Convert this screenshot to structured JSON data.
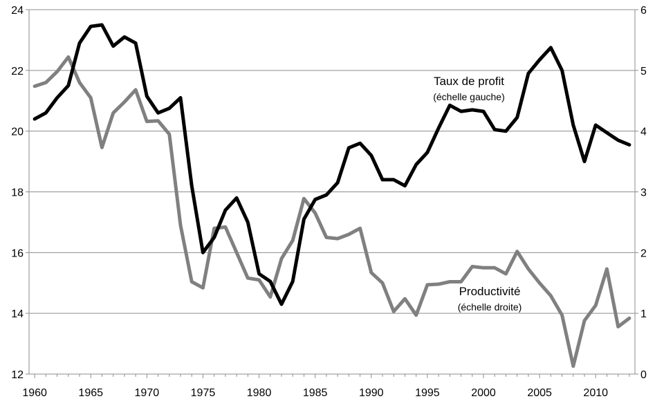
{
  "chart_data": {
    "type": "line",
    "title": "",
    "x": [
      1960,
      1961,
      1962,
      1963,
      1964,
      1965,
      1966,
      1967,
      1968,
      1969,
      1970,
      1971,
      1972,
      1973,
      1974,
      1975,
      1976,
      1977,
      1978,
      1979,
      1980,
      1981,
      1982,
      1983,
      1984,
      1985,
      1986,
      1987,
      1988,
      1989,
      1990,
      1991,
      1992,
      1993,
      1994,
      1995,
      1996,
      1997,
      1998,
      1999,
      2000,
      2001,
      2002,
      2003,
      2004,
      2005,
      2006,
      2007,
      2008,
      2009,
      2010,
      2011,
      2012,
      2013
    ],
    "xlim": [
      1959.5,
      2013.5
    ],
    "xticks": [
      1960,
      1965,
      1970,
      1975,
      1980,
      1985,
      1990,
      1995,
      2000,
      2005,
      2010
    ],
    "y_left": {
      "lim": [
        12,
        24
      ],
      "ticks": [
        12,
        14,
        16,
        18,
        20,
        22,
        24
      ]
    },
    "y_right": {
      "lim": [
        0,
        6
      ],
      "ticks": [
        0,
        1,
        2,
        3,
        4,
        5,
        6
      ]
    },
    "grid": "horizontal",
    "legend": "none",
    "series": [
      {
        "name": "Taux de profit",
        "axis": "left",
        "color": "#000000",
        "values": [
          20.4,
          20.6,
          21.1,
          21.5,
          22.9,
          23.45,
          23.5,
          22.8,
          23.1,
          22.9,
          21.15,
          20.6,
          20.75,
          21.1,
          18.2,
          16.0,
          16.5,
          17.4,
          17.8,
          17.0,
          15.3,
          15.05,
          14.3,
          15.05,
          17.1,
          17.75,
          17.9,
          18.3,
          19.45,
          19.6,
          19.2,
          18.4,
          18.4,
          18.2,
          18.9,
          19.3,
          20.1,
          20.85,
          20.65,
          20.7,
          20.65,
          20.05,
          20.0,
          20.45,
          21.9,
          22.35,
          22.75,
          22.0,
          20.2,
          19.0,
          20.2,
          19.95,
          19.7,
          19.55
        ]
      },
      {
        "name": "Productivité",
        "axis": "right",
        "color": "#808080",
        "values": [
          4.74,
          4.8,
          4.98,
          5.22,
          4.8,
          4.55,
          3.73,
          4.3,
          4.48,
          4.68,
          4.16,
          4.17,
          3.95,
          2.45,
          1.52,
          1.42,
          2.4,
          2.42,
          2.0,
          1.58,
          1.55,
          1.27,
          1.9,
          2.2,
          2.89,
          2.65,
          2.25,
          2.23,
          2.3,
          2.4,
          1.67,
          1.5,
          1.03,
          1.24,
          0.97,
          1.47,
          1.48,
          1.52,
          1.52,
          1.77,
          1.75,
          1.75,
          1.65,
          2.02,
          1.73,
          1.5,
          1.29,
          0.97,
          0.13,
          0.88,
          1.13,
          1.73,
          0.78,
          0.92
        ]
      }
    ],
    "annotations": [
      {
        "text": "Taux de profit",
        "sub": "(échelle gauche)"
      },
      {
        "text": "Productivité",
        "sub": "(échelle droite)"
      }
    ]
  }
}
